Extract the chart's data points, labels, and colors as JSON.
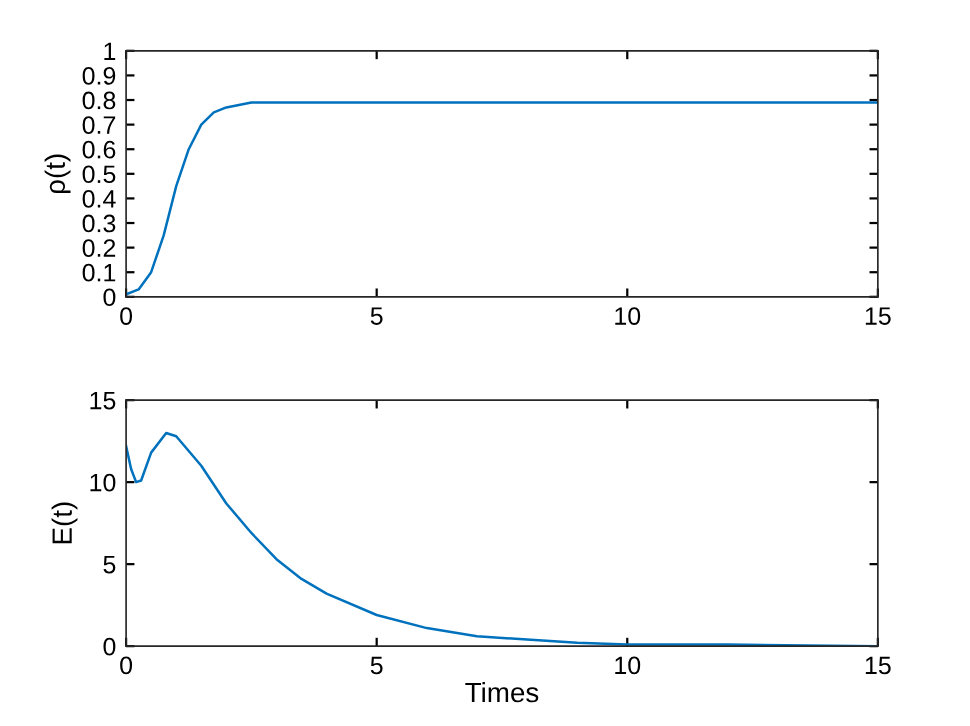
{
  "chart_data": [
    {
      "type": "line",
      "ylabel": "ρ(t)",
      "xlim": [
        0,
        15
      ],
      "ylim": [
        0,
        1
      ],
      "xticks": [
        0,
        5,
        10,
        15
      ],
      "yticks": [
        0,
        0.1,
        0.2,
        0.3,
        0.4,
        0.5,
        0.6,
        0.7,
        0.8,
        0.9,
        1
      ],
      "grid": false,
      "marker": "none",
      "line_style": "solid",
      "series": [
        {
          "color": "#0072bd",
          "x": [
            0,
            0.25,
            0.5,
            0.75,
            1.0,
            1.25,
            1.5,
            1.75,
            2,
            2.5,
            3,
            4,
            6,
            10,
            15
          ],
          "values": [
            0.01,
            0.03,
            0.1,
            0.25,
            0.45,
            0.6,
            0.7,
            0.75,
            0.77,
            0.79,
            0.79,
            0.79,
            0.79,
            0.79,
            0.79
          ]
        }
      ]
    },
    {
      "type": "line",
      "xlabel": "Times",
      "ylabel": "E(t)",
      "xlim": [
        0,
        15
      ],
      "ylim": [
        0,
        15
      ],
      "xticks": [
        0,
        5,
        10,
        15
      ],
      "yticks": [
        0,
        5,
        10,
        15
      ],
      "grid": false,
      "marker": "none",
      "line_style": "solid",
      "series": [
        {
          "color": "#0072bd",
          "x": [
            0,
            0.1,
            0.2,
            0.3,
            0.5,
            0.8,
            1.0,
            1.5,
            2,
            2.5,
            3,
            3.5,
            4,
            5,
            6,
            7,
            8,
            9,
            10,
            12,
            15
          ],
          "values": [
            12.2,
            10.8,
            10.0,
            10.1,
            11.8,
            13.0,
            12.8,
            11.0,
            8.7,
            6.9,
            5.3,
            4.1,
            3.2,
            1.9,
            1.1,
            0.6,
            0.4,
            0.2,
            0.1,
            0.1,
            0.0
          ]
        }
      ]
    }
  ]
}
